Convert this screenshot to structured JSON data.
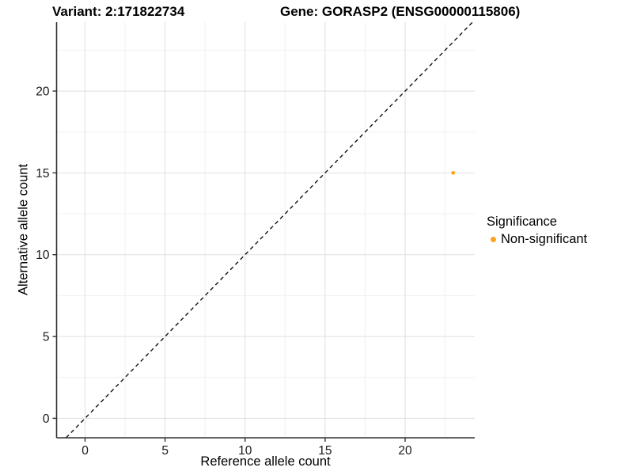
{
  "titles": {
    "variant": "Variant: 2:171822734",
    "gene": "Gene: GORASP2 (ENSG00000115806)"
  },
  "legend": {
    "title": "Significance",
    "position": "right",
    "items": [
      {
        "label": "Non-significant",
        "color": "#FFA320",
        "marker": "circle"
      }
    ]
  },
  "chart_data": {
    "type": "scatter",
    "title_left": "Variant: 2:171822734",
    "title_right": "Gene: GORASP2 (ENSG00000115806)",
    "xlabel": "Reference allele count",
    "ylabel": "Alternative allele count",
    "xlim": [
      -1.78,
      24.35
    ],
    "ylim": [
      -1.19,
      24.21
    ],
    "x_ticks": [
      0,
      5,
      10,
      15,
      20
    ],
    "y_ticks": [
      0,
      5,
      10,
      15,
      20
    ],
    "minor_step": 2.5,
    "grid": "major+minor",
    "legend_position": "right",
    "identity_line": {
      "style": "dashed",
      "slope": 1,
      "intercept": 0
    },
    "series": [
      {
        "name": "Non-significant",
        "color": "#FFA320",
        "points": [
          {
            "x": 23,
            "y": 15
          }
        ]
      }
    ],
    "colors": {
      "point": "#FFA320",
      "axis": "#333333",
      "tick_text": "#1a1a1a",
      "grid_major": "#e2e2e2",
      "grid_minor": "#f0f0f0",
      "diagonal": "#111111",
      "background": "#ffffff"
    }
  }
}
